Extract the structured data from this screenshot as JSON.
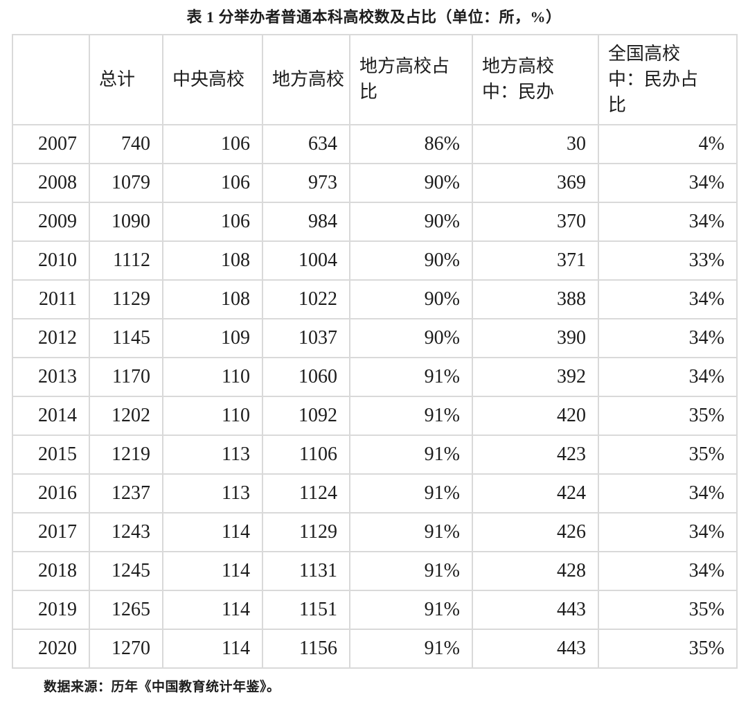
{
  "title": "表 1 分举办者普通本科高校数及占比（单位：所，%）",
  "source": "数据来源：历年《中国教育统计年鉴》。",
  "chart_data": {
    "type": "table",
    "title": "表 1 分举办者普通本科高校数及占比（单位：所，%）",
    "columns": [
      "",
      "总计",
      "中央高校",
      "地方高校",
      "地方高校占\n比",
      "地方高校\n中：民办",
      "全国高校\n中：民办占\n比"
    ],
    "rows": [
      [
        "2007",
        "740",
        "106",
        "634",
        "86%",
        "30",
        "4%"
      ],
      [
        "2008",
        "1079",
        "106",
        "973",
        "90%",
        "369",
        "34%"
      ],
      [
        "2009",
        "1090",
        "106",
        "984",
        "90%",
        "370",
        "34%"
      ],
      [
        "2010",
        "1112",
        "108",
        "1004",
        "90%",
        "371",
        "33%"
      ],
      [
        "2011",
        "1129",
        "108",
        "1022",
        "90%",
        "388",
        "34%"
      ],
      [
        "2012",
        "1145",
        "109",
        "1037",
        "90%",
        "390",
        "34%"
      ],
      [
        "2013",
        "1170",
        "110",
        "1060",
        "91%",
        "392",
        "34%"
      ],
      [
        "2014",
        "1202",
        "110",
        "1092",
        "91%",
        "420",
        "35%"
      ],
      [
        "2015",
        "1219",
        "113",
        "1106",
        "91%",
        "423",
        "35%"
      ],
      [
        "2016",
        "1237",
        "113",
        "1124",
        "91%",
        "424",
        "34%"
      ],
      [
        "2017",
        "1243",
        "114",
        "1129",
        "91%",
        "426",
        "34%"
      ],
      [
        "2018",
        "1245",
        "114",
        "1131",
        "91%",
        "428",
        "34%"
      ],
      [
        "2019",
        "1265",
        "114",
        "1151",
        "91%",
        "443",
        "35%"
      ],
      [
        "2020",
        "1270",
        "114",
        "1156",
        "91%",
        "443",
        "35%"
      ]
    ]
  },
  "colors": {
    "border": "#d9d9d9",
    "text": "#1c1c1c",
    "background": "#ffffff"
  }
}
